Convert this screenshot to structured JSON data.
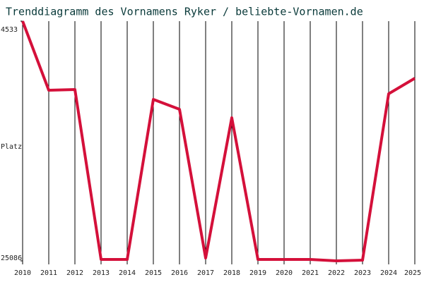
{
  "chart_data": {
    "type": "line",
    "title": "Trenddiagramm des Vornamens Ryker / beliebte-Vornamen.de",
    "y_label": "Platz",
    "categories": [
      "2010",
      "2011",
      "2012",
      "2013",
      "2014",
      "2015",
      "2016",
      "2017",
      "2018",
      "2019",
      "2020",
      "2021",
      "2022",
      "2023",
      "2024",
      "2025"
    ],
    "series": [
      {
        "name": "Ryker",
        "color": "#d4103a",
        "values": [
          4533,
          10457,
          10397,
          24965,
          24965,
          11243,
          12090,
          24844,
          12815,
          24965,
          24965,
          24965,
          25086,
          25026,
          10760,
          9430
        ]
      }
    ],
    "ylim": [
      25086,
      4533
    ],
    "yticks": [
      4533,
      25086
    ],
    "grid": true
  }
}
